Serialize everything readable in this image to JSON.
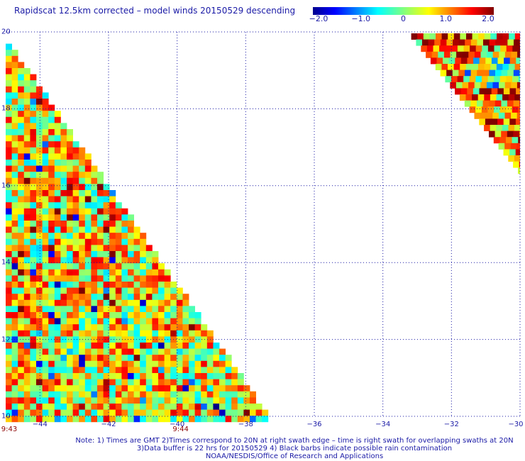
{
  "title": "Rapidscat 12.5km corrected – model winds 20150529 descending",
  "colorbar": {
    "labels": [
      "−2.0",
      "−1.0",
      "0",
      "1.0",
      "2.0"
    ],
    "range": [
      -2.0,
      2.0
    ]
  },
  "axes": {
    "x_ticks": [
      "−44",
      "−42",
      "−40",
      "−38",
      "−36",
      "−34",
      "−32",
      "−30"
    ],
    "x_values": [
      -44,
      -42,
      -40,
      -38,
      -36,
      -34,
      -32,
      -30
    ],
    "y_ticks": [
      "20",
      "18",
      "16",
      "14",
      "12",
      "10"
    ],
    "y_values": [
      20,
      18,
      16,
      14,
      12,
      10
    ],
    "x_range": [
      -45,
      -30
    ],
    "y_range": [
      10,
      20
    ],
    "grid": "dotted"
  },
  "time_labels": [
    {
      "text": "9:43",
      "lon": -45
    },
    {
      "text": "9:44",
      "lon": -40
    }
  ],
  "notes": [
    "Note: 1) Times are GMT 2)Times correspond to 20N at right swath edge – time is right swath for overlapping swaths at 20N",
    "3)Data buffer is 22 hrs for 20150529 4) Black barbs indicate possible rain contamination",
    "NOAA/NESDIS/Office of Research and Applications"
  ]
}
